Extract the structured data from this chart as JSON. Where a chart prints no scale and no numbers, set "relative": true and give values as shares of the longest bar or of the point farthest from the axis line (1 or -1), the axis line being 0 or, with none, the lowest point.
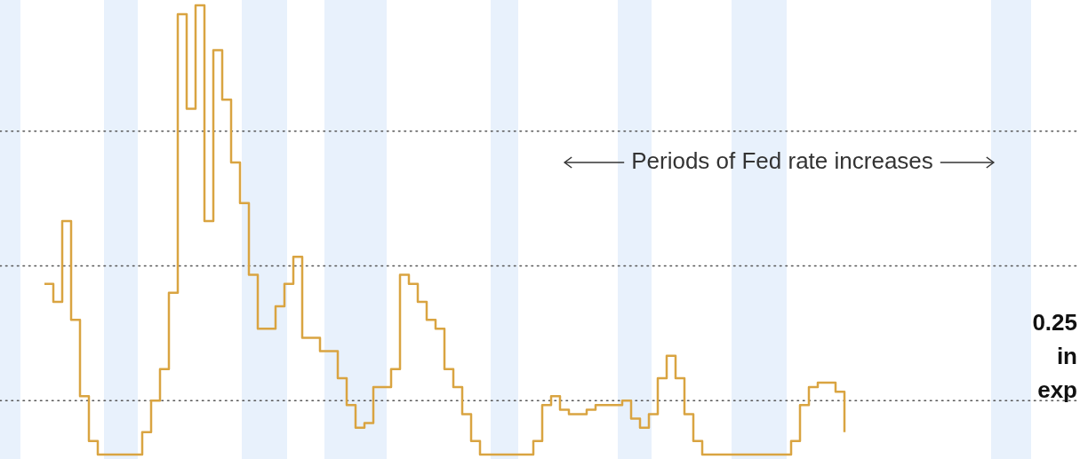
{
  "chart_data": {
    "type": "step",
    "relative": true,
    "categories": [
      null,
      null,
      null,
      null,
      null,
      null,
      null,
      null,
      null,
      null,
      null,
      null,
      null,
      null,
      null,
      null,
      null,
      null,
      null,
      null,
      null,
      null,
      null,
      null,
      null,
      null,
      null,
      null,
      null,
      null,
      null,
      null,
      null,
      null,
      null,
      null,
      null,
      null,
      null,
      null,
      null,
      null,
      null,
      null,
      null,
      null,
      null,
      null,
      null,
      null,
      null,
      null,
      null,
      null,
      null,
      null,
      null,
      null,
      null,
      null,
      null,
      null,
      null,
      null,
      null,
      null,
      null,
      null,
      null,
      null,
      null,
      null,
      null,
      null,
      null,
      null,
      null,
      null,
      null,
      null,
      null,
      null,
      null,
      null,
      null,
      null,
      null,
      null,
      null,
      null,
      null,
      null,
      null,
      null,
      null,
      null,
      null,
      null,
      null,
      null,
      null,
      null,
      null,
      null,
      null,
      null,
      null,
      null,
      null,
      null,
      null,
      null,
      null,
      null,
      null,
      null,
      null,
      null,
      null,
      null,
      null,
      null
    ],
    "series": [
      {
        "color": "#d9a441",
        "values": [
          null,
          null,
          null,
          null,
          null,
          0.38,
          0.34,
          0.52,
          0.3,
          0.13,
          0.03,
          0,
          0,
          0,
          0,
          0,
          0.05,
          0.12,
          0.19,
          0.36,
          0.98,
          0.77,
          1,
          0.52,
          0.9,
          0.79,
          0.65,
          0.56,
          0.4,
          0.28,
          0.28,
          0.33,
          0.38,
          0.44,
          0.26,
          0.26,
          0.23,
          0.23,
          0.17,
          0.11,
          0.06,
          0.07,
          0.15,
          0.15,
          0.19,
          0.4,
          0.38,
          0.34,
          0.3,
          0.28,
          0.19,
          0.15,
          0.09,
          0.03,
          0,
          0,
          0,
          0,
          0,
          0,
          0.03,
          0.11,
          0.13,
          0.1,
          0.09,
          0.09,
          0.1,
          0.11,
          0.11,
          0.11,
          0.12,
          0.08,
          0.06,
          0.09,
          0.17,
          0.22,
          0.17,
          0.09,
          0.03,
          0,
          0,
          0,
          0,
          0,
          0,
          0,
          0,
          0,
          0,
          0.03,
          0.11,
          0.15,
          0.16,
          0.16,
          0.14,
          0.05,
          null,
          null,
          null,
          null,
          null,
          null,
          null,
          null,
          null,
          null,
          null,
          null,
          null,
          null,
          null,
          null,
          null,
          null,
          null,
          null,
          null,
          null,
          null,
          null,
          null,
          null
        ]
      }
    ],
    "ref_lines": [
      {
        "axis": "y",
        "value": 0.12,
        "line_style": "dotted"
      },
      {
        "axis": "y",
        "value": 0.42,
        "line_style": "dotted"
      },
      {
        "axis": "y",
        "value": 0.72,
        "line_style": "dotted"
      }
    ],
    "annotations": [
      "Periods of Fed rate increases",
      "0.25",
      "in",
      "exp"
    ]
  }
}
